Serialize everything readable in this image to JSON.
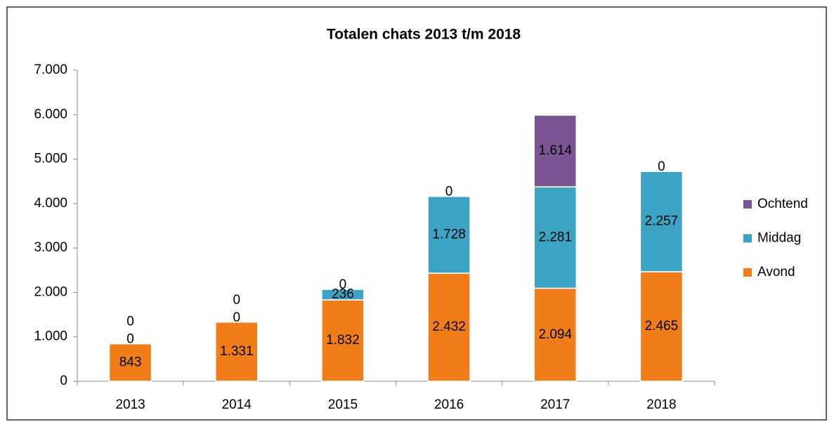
{
  "chart_data": {
    "type": "stacked_bar",
    "title": "Totalen chats 2013 t/m 2018",
    "categories": [
      "2013",
      "2014",
      "2015",
      "2016",
      "2017",
      "2018"
    ],
    "series": [
      {
        "name": "Avond",
        "color": "#f07d17",
        "values": [
          843,
          1331,
          1832,
          2432,
          2094,
          2465
        ],
        "value_labels": [
          "843",
          "1.331",
          "1.832",
          "2.432",
          "2.094",
          "2.465"
        ]
      },
      {
        "name": "Middag",
        "color": "#3ba3c3",
        "values": [
          0,
          0,
          236,
          1728,
          2281,
          2257
        ],
        "value_labels": [
          "0",
          "0",
          "236",
          "1.728",
          "2.281",
          "2.257"
        ]
      },
      {
        "name": "Ochtend",
        "color": "#7a5594",
        "values": [
          0,
          0,
          0,
          0,
          1614,
          0
        ],
        "value_labels": [
          "0",
          "0",
          "0",
          "0",
          "1.614",
          "0"
        ]
      }
    ],
    "ylim": [
      0,
      7000
    ],
    "yticks": [
      0,
      {
        "value": 1000,
        "label": "1.000"
      },
      {
        "value": 2000,
        "label": "2.000"
      },
      {
        "value": 3000,
        "label": "3.000"
      },
      {
        "value": 4000,
        "label": "4.000"
      },
      {
        "value": 5000,
        "label": "5.000"
      },
      {
        "value": 6000,
        "label": "6.000"
      },
      {
        "value": 7000,
        "label": "7.000"
      }
    ],
    "grid": false,
    "legend": "right"
  }
}
